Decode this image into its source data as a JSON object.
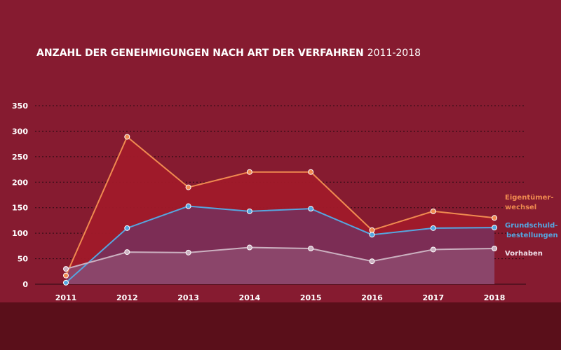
{
  "chart_data": {
    "type": "area",
    "title_bold": "ANZAHL DER GENEHMIGUNGEN NACH ART DER VERFAHREN",
    "title_light": "2011-2018",
    "categories": [
      "2011",
      "2012",
      "2013",
      "2014",
      "2015",
      "2016",
      "2017",
      "2018"
    ],
    "ylim": [
      0,
      350
    ],
    "yticks": [
      0,
      50,
      100,
      150,
      200,
      250,
      300,
      350
    ],
    "grid": true,
    "legend_placement": "right",
    "series": [
      {
        "name_lines": [
          "Eigentümer-",
          "wechsel"
        ],
        "color": "#f08a50",
        "fill": "#a01a2a",
        "values": [
          17,
          289,
          190,
          220,
          220,
          106,
          143,
          130
        ]
      },
      {
        "name_lines": [
          "Grundschuld-",
          "bestellungen"
        ],
        "color": "#55a6e0",
        "fill": "#7a2e57",
        "values": [
          3,
          110,
          153,
          143,
          148,
          97,
          110,
          111
        ]
      },
      {
        "name_lines": [
          "Vorhaben"
        ],
        "color": "#cbb0c0",
        "fill": "#8e4a6e",
        "values": [
          30,
          63,
          62,
          72,
          70,
          45,
          68,
          70
        ]
      }
    ],
    "colors": {
      "background": "#861b30",
      "footer": "#5a0f1a",
      "axis_text": "#ffffff",
      "grid": "#2a0a12"
    }
  }
}
